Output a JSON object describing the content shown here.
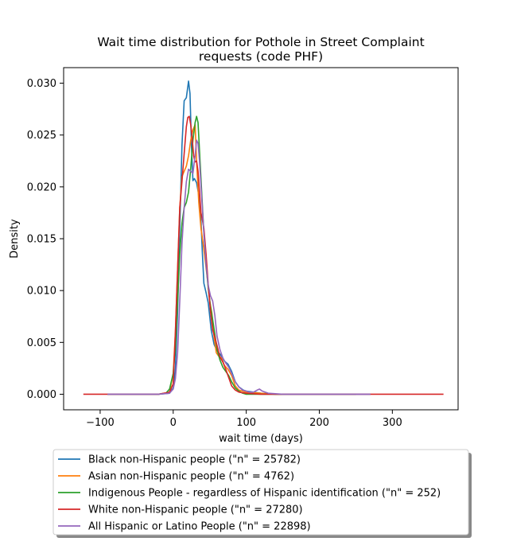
{
  "chart_data": {
    "type": "line",
    "title_line1": "Wait time distribution  for Pothole in Street Complaint",
    "title_line2": "requests (code PHF)",
    "xlabel": "wait time (days)",
    "ylabel": "Density",
    "xlim": [
      -150,
      390
    ],
    "ylim": [
      -0.0015,
      0.0315
    ],
    "xticks": [
      -100,
      0,
      100,
      200,
      300
    ],
    "xtick_labels": [
      "−100",
      "0",
      "100",
      "200",
      "300"
    ],
    "yticks": [
      0.0,
      0.005,
      0.01,
      0.015,
      0.02,
      0.025,
      0.03
    ],
    "ytick_labels": [
      "0.000",
      "0.005",
      "0.010",
      "0.015",
      "0.020",
      "0.025",
      "0.030"
    ],
    "grid": false,
    "legend_position": "below-plot",
    "series": [
      {
        "name": "Black non-Hispanic people (\"n\" = 25782)",
        "color": "#1f77b4",
        "points": [
          [
            -90,
            0
          ],
          [
            -20,
            0
          ],
          [
            -5,
            0.0001
          ],
          [
            0,
            0.0006
          ],
          [
            3,
            0.0025
          ],
          [
            6,
            0.008
          ],
          [
            9,
            0.016
          ],
          [
            12,
            0.024
          ],
          [
            15,
            0.0283
          ],
          [
            18,
            0.0286
          ],
          [
            21,
            0.0302
          ],
          [
            23,
            0.029
          ],
          [
            25,
            0.024
          ],
          [
            27,
            0.0206
          ],
          [
            29,
            0.0208
          ],
          [
            32,
            0.0204
          ],
          [
            35,
            0.0192
          ],
          [
            38,
            0.0168
          ],
          [
            40,
            0.0135
          ],
          [
            42,
            0.0107
          ],
          [
            45,
            0.0098
          ],
          [
            48,
            0.0088
          ],
          [
            52,
            0.0062
          ],
          [
            56,
            0.0048
          ],
          [
            60,
            0.0042
          ],
          [
            65,
            0.0038
          ],
          [
            70,
            0.0032
          ],
          [
            75,
            0.0029
          ],
          [
            80,
            0.0022
          ],
          [
            85,
            0.0012
          ],
          [
            90,
            0.0007
          ],
          [
            96,
            0.0004
          ],
          [
            100,
            0.0003
          ],
          [
            110,
            0.0002
          ],
          [
            120,
            0.0001
          ],
          [
            140,
            0
          ],
          [
            200,
            0
          ],
          [
            240,
            0
          ],
          [
            270,
            0
          ]
        ]
      },
      {
        "name": "Asian non-Hispanic people (\"n\" = 4762)",
        "color": "#ff7f0e",
        "points": [
          [
            -90,
            0
          ],
          [
            -20,
            0
          ],
          [
            -5,
            0.0002
          ],
          [
            0,
            0.002
          ],
          [
            3,
            0.006
          ],
          [
            6,
            0.012
          ],
          [
            9,
            0.018
          ],
          [
            12,
            0.021
          ],
          [
            15,
            0.0215
          ],
          [
            18,
            0.022
          ],
          [
            21,
            0.023
          ],
          [
            24,
            0.0245
          ],
          [
            27,
            0.0255
          ],
          [
            30,
            0.026
          ],
          [
            32,
            0.0225
          ],
          [
            35,
            0.0185
          ],
          [
            38,
            0.016
          ],
          [
            41,
            0.0145
          ],
          [
            44,
            0.0128
          ],
          [
            47,
            0.011
          ],
          [
            50,
            0.009
          ],
          [
            53,
            0.0078
          ],
          [
            56,
            0.0055
          ],
          [
            59,
            0.004
          ],
          [
            62,
            0.0037
          ],
          [
            66,
            0.0035
          ],
          [
            70,
            0.0028
          ],
          [
            75,
            0.0024
          ],
          [
            80,
            0.0018
          ],
          [
            85,
            0.0008
          ],
          [
            90,
            0.0004
          ],
          [
            100,
            0.0002
          ],
          [
            120,
            0.0001
          ],
          [
            140,
            0
          ],
          [
            250,
            0
          ]
        ]
      },
      {
        "name": "Indigenous People - regardless of Hispanic identification (\"n\" = 252)",
        "color": "#2ca02c",
        "points": [
          [
            -90,
            0
          ],
          [
            -20,
            0
          ],
          [
            -10,
            0.0001
          ],
          [
            -5,
            0.0005
          ],
          [
            0,
            0.002
          ],
          [
            3,
            0.0045
          ],
          [
            6,
            0.009
          ],
          [
            9,
            0.0135
          ],
          [
            12,
            0.0165
          ],
          [
            15,
            0.018
          ],
          [
            18,
            0.0185
          ],
          [
            21,
            0.0195
          ],
          [
            24,
            0.0218
          ],
          [
            27,
            0.0245
          ],
          [
            30,
            0.0262
          ],
          [
            32,
            0.0268
          ],
          [
            34,
            0.0262
          ],
          [
            36,
            0.0235
          ],
          [
            39,
            0.0195
          ],
          [
            42,
            0.0155
          ],
          [
            45,
            0.0125
          ],
          [
            48,
            0.0102
          ],
          [
            51,
            0.0085
          ],
          [
            54,
            0.0072
          ],
          [
            57,
            0.0058
          ],
          [
            60,
            0.0043
          ],
          [
            64,
            0.0033
          ],
          [
            68,
            0.0026
          ],
          [
            72,
            0.0022
          ],
          [
            76,
            0.0018
          ],
          [
            80,
            0.0012
          ],
          [
            85,
            0.0006
          ],
          [
            90,
            0.0003
          ],
          [
            95,
            0.0001
          ],
          [
            100,
            0
          ],
          [
            250,
            0
          ]
        ]
      },
      {
        "name": "White non-Hispanic people (\"n\" = 27280)",
        "color": "#d62728",
        "points": [
          [
            -123,
            0
          ],
          [
            -20,
            0
          ],
          [
            -5,
            0.0002
          ],
          [
            0,
            0.001
          ],
          [
            3,
            0.006
          ],
          [
            6,
            0.012
          ],
          [
            9,
            0.018
          ],
          [
            12,
            0.0205
          ],
          [
            15,
            0.0232
          ],
          [
            18,
            0.0258
          ],
          [
            20,
            0.0267
          ],
          [
            22,
            0.0268
          ],
          [
            24,
            0.026
          ],
          [
            26,
            0.0247
          ],
          [
            28,
            0.023
          ],
          [
            30,
            0.0224
          ],
          [
            32,
            0.0225
          ],
          [
            34,
            0.0215
          ],
          [
            36,
            0.0195
          ],
          [
            38,
            0.0175
          ],
          [
            40,
            0.0168
          ],
          [
            42,
            0.016
          ],
          [
            45,
            0.0135
          ],
          [
            48,
            0.0105
          ],
          [
            51,
            0.008
          ],
          [
            54,
            0.0062
          ],
          [
            57,
            0.0055
          ],
          [
            60,
            0.0047
          ],
          [
            64,
            0.0036
          ],
          [
            68,
            0.0031
          ],
          [
            72,
            0.0024
          ],
          [
            76,
            0.0016
          ],
          [
            80,
            0.0008
          ],
          [
            85,
            0.0004
          ],
          [
            90,
            0.0002
          ],
          [
            100,
            0.0001
          ],
          [
            120,
            0
          ],
          [
            370,
            0
          ]
        ]
      },
      {
        "name": "All Hispanic or Latino People (\"n\" = 22898)",
        "color": "#9467bd",
        "points": [
          [
            -90,
            0
          ],
          [
            -20,
            0
          ],
          [
            -5,
            0.0001
          ],
          [
            0,
            0.0005
          ],
          [
            3,
            0.0015
          ],
          [
            6,
            0.004
          ],
          [
            9,
            0.009
          ],
          [
            12,
            0.0145
          ],
          [
            15,
            0.018
          ],
          [
            18,
            0.0205
          ],
          [
            21,
            0.0217
          ],
          [
            24,
            0.0215
          ],
          [
            27,
            0.0213
          ],
          [
            30,
            0.023
          ],
          [
            32,
            0.0245
          ],
          [
            34,
            0.0242
          ],
          [
            36,
            0.0225
          ],
          [
            39,
            0.019
          ],
          [
            42,
            0.0155
          ],
          [
            45,
            0.0125
          ],
          [
            48,
            0.0105
          ],
          [
            51,
            0.0095
          ],
          [
            54,
            0.009
          ],
          [
            57,
            0.0076
          ],
          [
            60,
            0.0056
          ],
          [
            64,
            0.0043
          ],
          [
            68,
            0.0035
          ],
          [
            72,
            0.003
          ],
          [
            76,
            0.0026
          ],
          [
            80,
            0.002
          ],
          [
            85,
            0.0012
          ],
          [
            90,
            0.0007
          ],
          [
            95,
            0.0004
          ],
          [
            100,
            0.0003
          ],
          [
            105,
            0.0002
          ],
          [
            110,
            0.0002
          ],
          [
            115,
            0.0004
          ],
          [
            118,
            0.0005
          ],
          [
            122,
            0.0003
          ],
          [
            130,
            0.0001
          ],
          [
            150,
            0
          ],
          [
            250,
            0
          ],
          [
            270,
            0
          ]
        ]
      }
    ]
  }
}
